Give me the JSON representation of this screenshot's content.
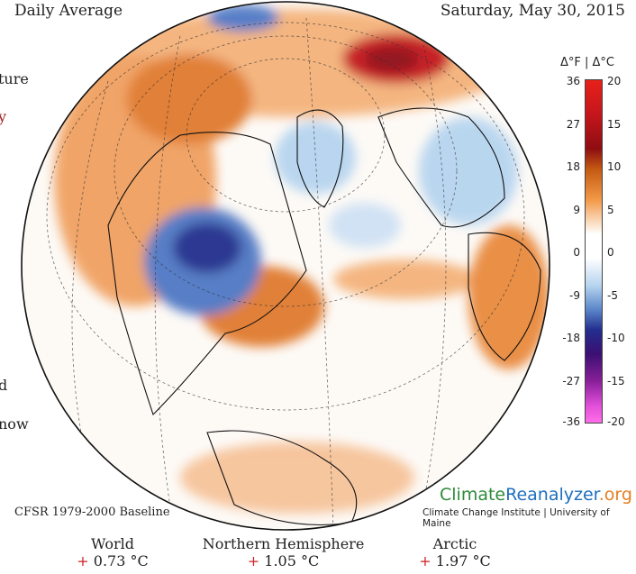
{
  "header": {
    "left_title": "Daily Average",
    "date": "Saturday, May 30, 2015"
  },
  "left_fragments": [
    "ture",
    "y",
    "d",
    "now"
  ],
  "legend": {
    "title": "Δ°F | Δ°C",
    "f_ticks": [
      "36",
      "27",
      "18",
      "9",
      "0",
      "-9",
      "-18",
      "-27",
      "-36"
    ],
    "c_ticks": [
      "20",
      "15",
      "10",
      "5",
      "0",
      "-5",
      "-10",
      "-15",
      "-20"
    ]
  },
  "map": {
    "projection": "orthographic, North Atlantic / North America centered",
    "anomalies": [
      {
        "region": "Central Canada",
        "sign": "cold",
        "intensity": "strong"
      },
      {
        "region": "Western Russia / Barents",
        "sign": "warm",
        "intensity": "strong"
      },
      {
        "region": "Alaska & western North America",
        "sign": "warm",
        "intensity": "moderate"
      },
      {
        "region": "Greenland & Baffin",
        "sign": "cold",
        "intensity": "mild"
      },
      {
        "region": "Eastern United States",
        "sign": "warm",
        "intensity": "moderate"
      },
      {
        "region": "Europe",
        "sign": "cold",
        "intensity": "mild"
      },
      {
        "region": "North Africa",
        "sign": "warm",
        "intensity": "moderate"
      }
    ]
  },
  "branding": {
    "part1": "Climate",
    "part2": "Reanalyzer",
    "part3": ".org",
    "institute": "Climate Change Institute | University of Maine"
  },
  "baseline": "CFSR 1979-2000 Baseline",
  "stats": [
    {
      "name": "World",
      "sign": "+",
      "value": "0.73 °C"
    },
    {
      "name": "Northern Hemisphere",
      "sign": "+",
      "value": "1.05 °C"
    },
    {
      "name": "Arctic",
      "sign": "+",
      "value": "1.97 °C"
    }
  ],
  "colors": {
    "warm_light": "#f4b27a",
    "warm": "#e07a2e",
    "warm_strong": "#8e0d12",
    "cold_light": "#b6d4ef",
    "cold": "#4f78c4",
    "cold_strong": "#232d8d",
    "plus_sign": "#cc2222"
  }
}
